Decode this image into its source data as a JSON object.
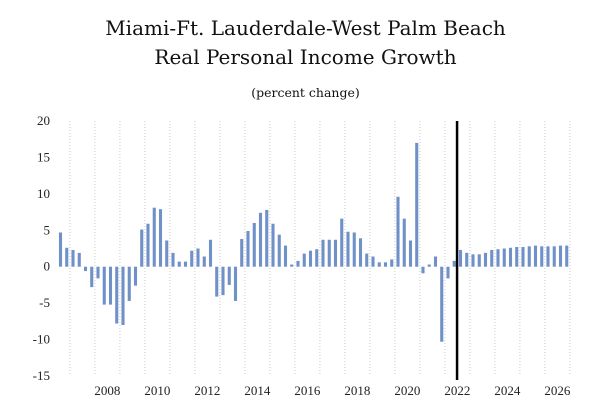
{
  "chart_data": {
    "type": "bar",
    "title": "Miami-Ft. Lauderdale-West Palm Beach",
    "title_line2": "Real Personal Income Growth",
    "subtitle": "(percent change)",
    "xlabel": "",
    "ylabel": "",
    "ylim": [
      -15,
      20
    ],
    "y_ticks": [
      20,
      15,
      10,
      5,
      0,
      -5,
      -10,
      -15
    ],
    "x_ticks": [
      "2008",
      "2010",
      "2012",
      "2014",
      "2016",
      "2018",
      "2020",
      "2022",
      "2024",
      "2026"
    ],
    "grid": "vertical dotted",
    "bar_color": "#7090C8",
    "forecast_line_color": "#000000",
    "forecast_divider_quarter": "2022Q3",
    "quarters": [
      "2006Q3",
      "2006Q4",
      "2007Q1",
      "2007Q2",
      "2007Q3",
      "2007Q4",
      "2008Q1",
      "2008Q2",
      "2008Q3",
      "2008Q4",
      "2009Q1",
      "2009Q2",
      "2009Q3",
      "2009Q4",
      "2010Q1",
      "2010Q2",
      "2010Q3",
      "2010Q4",
      "2011Q1",
      "2011Q2",
      "2011Q3",
      "2011Q4",
      "2012Q1",
      "2012Q2",
      "2012Q3",
      "2012Q4",
      "2013Q1",
      "2013Q2",
      "2013Q3",
      "2013Q4",
      "2014Q1",
      "2014Q2",
      "2014Q3",
      "2014Q4",
      "2015Q1",
      "2015Q2",
      "2015Q3",
      "2015Q4",
      "2016Q1",
      "2016Q2",
      "2016Q3",
      "2016Q4",
      "2017Q1",
      "2017Q2",
      "2017Q3",
      "2017Q4",
      "2018Q1",
      "2018Q2",
      "2018Q3",
      "2018Q4",
      "2019Q1",
      "2019Q2",
      "2019Q3",
      "2019Q4",
      "2020Q1",
      "2020Q2",
      "2020Q3",
      "2020Q4",
      "2021Q1",
      "2021Q2",
      "2021Q3",
      "2021Q4",
      "2022Q1",
      "2022Q2",
      "2022Q3",
      "2022Q4",
      "2023Q1",
      "2023Q2",
      "2023Q3",
      "2023Q4",
      "2024Q1",
      "2024Q2",
      "2024Q3",
      "2024Q4",
      "2025Q1",
      "2025Q2",
      "2025Q3",
      "2025Q4",
      "2026Q1",
      "2026Q2",
      "2026Q3",
      "2026Q4"
    ],
    "values": [
      4.7,
      2.6,
      2.3,
      1.9,
      -0.6,
      -2.8,
      -1.6,
      -5.2,
      -5.2,
      -7.8,
      -8.0,
      -4.7,
      -2.6,
      5.1,
      5.9,
      8.1,
      7.9,
      3.6,
      1.9,
      0.7,
      0.7,
      2.2,
      2.5,
      1.4,
      3.7,
      -4.1,
      -3.9,
      -2.5,
      -4.7,
      3.8,
      4.9,
      6.0,
      7.4,
      7.8,
      5.9,
      4.4,
      2.9,
      0.3,
      0.8,
      1.8,
      2.2,
      2.4,
      3.7,
      3.7,
      3.7,
      6.6,
      4.8,
      4.7,
      3.9,
      1.8,
      1.4,
      0.6,
      0.6,
      1.0,
      9.6,
      6.6,
      3.6,
      17.0,
      -0.9,
      0.3,
      1.4,
      -10.3,
      -1.6,
      0.8,
      2.3,
      1.9,
      1.7,
      1.7,
      1.9,
      2.3,
      2.4,
      2.5,
      2.6,
      2.7,
      2.7,
      2.8,
      2.9,
      2.8,
      2.8,
      2.8,
      2.9,
      2.9
    ]
  }
}
